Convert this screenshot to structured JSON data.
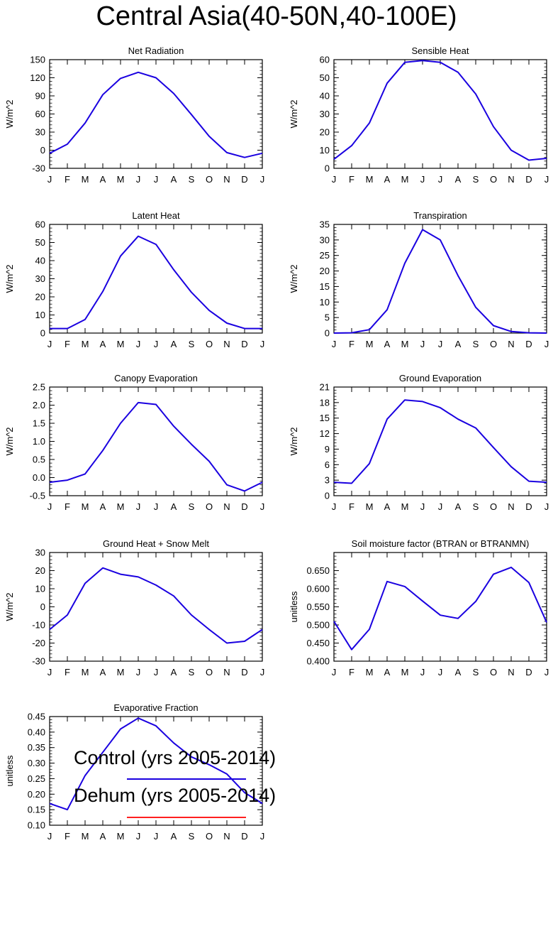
{
  "title": "Central Asia(40-50N,40-100E)",
  "months": [
    "J",
    "F",
    "M",
    "A",
    "M",
    "J",
    "J",
    "A",
    "S",
    "O",
    "N",
    "D",
    "J"
  ],
  "colors": {
    "control": "#1a00e0",
    "dehum": "#ff2020"
  },
  "legend": [
    {
      "name": "Control (yrs 2005-2014)",
      "color": "#1a00e0"
    },
    {
      "name": "Dehum (yrs 2005-2014)",
      "color": "#ff2020"
    }
  ],
  "chart_data": [
    {
      "type": "line",
      "title": "Net Radiation",
      "ylabel": "W/m^2",
      "ylim": [
        -30,
        150
      ],
      "yticks": [
        -30,
        0,
        30,
        60,
        90,
        120,
        150
      ],
      "decimals": 0,
      "series": [
        {
          "name": "Control (yrs 2005-2014)",
          "values": [
            -5,
            10,
            45,
            92,
            119,
            129,
            120,
            94,
            59,
            23,
            -4,
            -12,
            -5
          ]
        }
      ]
    },
    {
      "type": "line",
      "title": "Sensible Heat",
      "ylabel": "W/m^2",
      "ylim": [
        0,
        60
      ],
      "yticks": [
        0,
        10,
        20,
        30,
        40,
        50,
        60
      ],
      "decimals": 0,
      "series": [
        {
          "name": "Control (yrs 2005-2014)",
          "values": [
            5,
            12.5,
            25,
            47,
            58.5,
            59.5,
            58.5,
            53,
            41,
            23,
            10,
            4.5,
            5.5
          ]
        }
      ]
    },
    {
      "type": "line",
      "title": "Latent Heat",
      "ylabel": "W/m^2",
      "ylim": [
        0,
        60
      ],
      "yticks": [
        0,
        10,
        20,
        30,
        40,
        50,
        60
      ],
      "decimals": 0,
      "series": [
        {
          "name": "Control (yrs 2005-2014)",
          "values": [
            2.5,
            2.5,
            7.5,
            23,
            42.5,
            53.5,
            49,
            35,
            22.5,
            12.5,
            5.5,
            2.5,
            2.5
          ]
        }
      ]
    },
    {
      "type": "line",
      "title": "Transpiration",
      "ylabel": "W/m^2",
      "ylim": [
        0,
        35
      ],
      "yticks": [
        0,
        5,
        10,
        15,
        20,
        25,
        30,
        35
      ],
      "decimals": 0,
      "series": [
        {
          "name": "Control (yrs 2005-2014)",
          "values": [
            0,
            0.1,
            1.1,
            7.5,
            22.5,
            33.3,
            30,
            18.5,
            8.3,
            2.4,
            0.5,
            0.1,
            0
          ]
        }
      ]
    },
    {
      "type": "line",
      "title": "Canopy Evaporation",
      "ylabel": "W/m^2",
      "ylim": [
        -0.5,
        2.5
      ],
      "yticks": [
        -0.5,
        0,
        0.5,
        1.0,
        1.5,
        2.0,
        2.5
      ],
      "decimals": 1,
      "series": [
        {
          "name": "Control (yrs 2005-2014)",
          "values": [
            -0.13,
            -0.07,
            0.1,
            0.75,
            1.5,
            2.07,
            2.02,
            1.42,
            0.92,
            0.45,
            -0.2,
            -0.37,
            -0.13
          ]
        }
      ]
    },
    {
      "type": "line",
      "title": "Ground Evaporation",
      "ylabel": "W/m^2",
      "ylim": [
        0,
        21
      ],
      "yticks": [
        0,
        3,
        6,
        9,
        12,
        15,
        18,
        21
      ],
      "decimals": 0,
      "series": [
        {
          "name": "Control (yrs 2005-2014)",
          "values": [
            2.6,
            2.4,
            6.2,
            14.8,
            18.5,
            18.2,
            17,
            14.8,
            13.1,
            9.3,
            5.6,
            2.8,
            2.6
          ]
        }
      ]
    },
    {
      "type": "line",
      "title": "Ground Heat + Snow Melt",
      "ylabel": "W/m^2",
      "ylim": [
        -30,
        30
      ],
      "yticks": [
        -30,
        -20,
        -10,
        0,
        10,
        20,
        30
      ],
      "decimals": 0,
      "series": [
        {
          "name": "Control (yrs 2005-2014)",
          "values": [
            -12.5,
            -4.5,
            13,
            21.5,
            18,
            16.5,
            12,
            6,
            -4.5,
            -12.5,
            -20,
            -19,
            -12.5
          ]
        }
      ]
    },
    {
      "type": "line",
      "title": "Soil moisture factor (BTRAN or BTRANMN)",
      "ylabel": "unitless",
      "ylim": [
        0.4,
        0.7
      ],
      "yticks": [
        0.4,
        0.45,
        0.5,
        0.55,
        0.6,
        0.65
      ],
      "decimals": 3,
      "series": [
        {
          "name": "Control (yrs 2005-2014)",
          "values": [
            0.51,
            0.432,
            0.488,
            0.62,
            0.606,
            0.566,
            0.527,
            0.518,
            0.565,
            0.64,
            0.659,
            0.617,
            0.507
          ]
        }
      ]
    },
    {
      "type": "line",
      "title": "Evaporative Fraction",
      "ylabel": "unitless",
      "ylim": [
        0.1,
        0.45
      ],
      "yticks": [
        0.1,
        0.15,
        0.2,
        0.25,
        0.3,
        0.35,
        0.4,
        0.45
      ],
      "decimals": 2,
      "series": [
        {
          "name": "Control (yrs 2005-2014)",
          "values": [
            0.17,
            0.15,
            0.26,
            0.335,
            0.41,
            0.445,
            0.42,
            0.365,
            0.32,
            0.295,
            0.265,
            0.205,
            0.17
          ]
        }
      ]
    }
  ]
}
